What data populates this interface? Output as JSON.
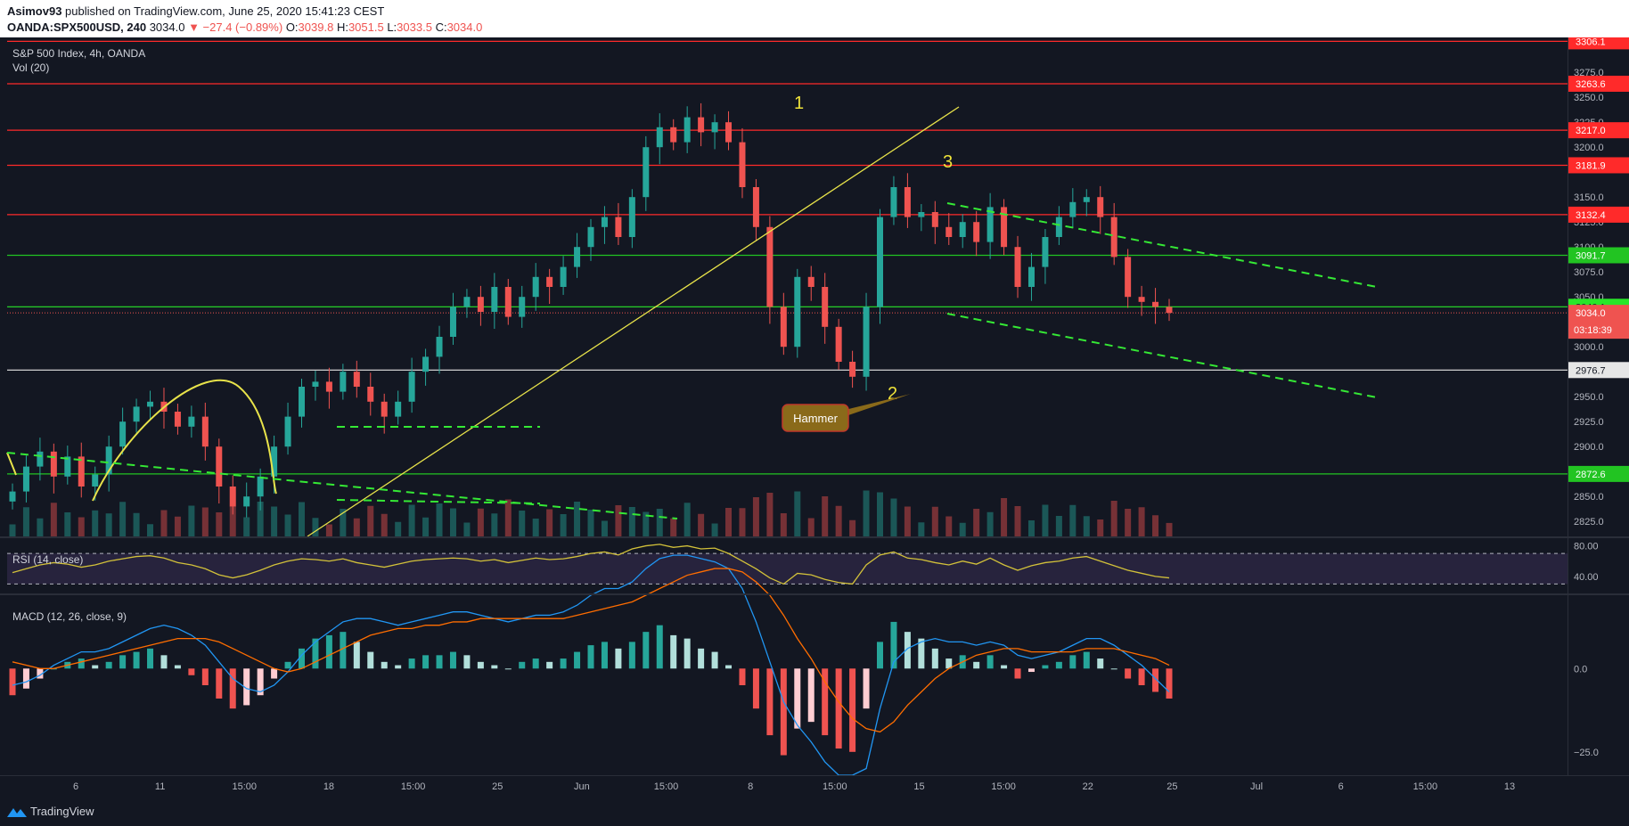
{
  "header": {
    "publisher": "Asimov93",
    "published_text": "published on TradingView.com, June 25, 2020 15:41:23 CEST",
    "symbol": "OANDA:SPX500USD, 240",
    "last": "3034.0",
    "change": "▼ −27.4 (−0.89%)",
    "open_label": "O:",
    "open": "3039.8",
    "high_label": "H:",
    "high": "3051.5",
    "low_label": "L:",
    "low": "3033.5",
    "close_label": "C:",
    "close": "3034.0"
  },
  "legend": {
    "title": "S&P 500 Index, 4h, OANDA",
    "vol": "Vol (20)",
    "rsi": "RSI (14, close)",
    "macd": "MACD (12, 26, close, 9)"
  },
  "footer": {
    "brand": "TradingView"
  },
  "colors": {
    "background": "#131722",
    "up": "#26a69a",
    "down": "#ef5350",
    "resistance": "#ff2020",
    "support": "#22c422",
    "trendline": "#e8e34a",
    "channel": "#35e935",
    "rsi": "#d2c13a",
    "macd_line": "#2196f3",
    "signal_line": "#ff6d00"
  },
  "chart_data": [
    {
      "type": "candlestick",
      "title": "S&P 500 Index, 4h, OANDA",
      "y_ticks": [
        "3275.0",
        "3250.0",
        "3225.0",
        "3200.0",
        "3150.0",
        "3125.0",
        "3100.0",
        "3075.0",
        "3050.0",
        "3000.0",
        "2950.0",
        "2925.0",
        "2900.0",
        "2850.0",
        "2825.0"
      ],
      "x_ticks": [
        "6",
        "11",
        "15:00",
        "18",
        "15:00",
        "25",
        "Jun",
        "15:00",
        "8",
        "15:00",
        "15",
        "15:00",
        "22",
        "25",
        "Jul",
        "6",
        "15:00",
        "13"
      ],
      "ylim": [
        2810,
        3310
      ],
      "price_levels": [
        {
          "value": 3306.1,
          "label": "3306.1",
          "kind": "resistance"
        },
        {
          "value": 3263.6,
          "label": "3263.6",
          "kind": "resistance"
        },
        {
          "value": 3217.0,
          "label": "3217.0",
          "kind": "resistance"
        },
        {
          "value": 3181.9,
          "label": "3181.9",
          "kind": "resistance"
        },
        {
          "value": 3132.4,
          "label": "3132.4",
          "kind": "resistance"
        },
        {
          "value": 3091.7,
          "label": "3091.7",
          "kind": "support"
        },
        {
          "value": 3040.1,
          "label": "3040.1",
          "kind": "support_bright"
        },
        {
          "value": 2976.7,
          "label": "2976.7",
          "kind": "neutral"
        },
        {
          "value": 2872.6,
          "label": "2872.6",
          "kind": "support"
        }
      ],
      "last_price": {
        "value": 3034.0,
        "label": "3034.0",
        "countdown": "03:18:39"
      },
      "annotations": [
        {
          "text": "1",
          "kind": "wave"
        },
        {
          "text": "2",
          "kind": "wave"
        },
        {
          "text": "3",
          "kind": "wave"
        },
        {
          "text": "Hammer",
          "kind": "callout"
        }
      ],
      "closes": [
        2855,
        2880,
        2895,
        2870,
        2890,
        2860,
        2872,
        2900,
        2925,
        2940,
        2945,
        2935,
        2920,
        2930,
        2900,
        2860,
        2840,
        2850,
        2870,
        2900,
        2930,
        2960,
        2965,
        2955,
        2975,
        2960,
        2945,
        2930,
        2945,
        2975,
        2990,
        3010,
        3040,
        3050,
        3035,
        3060,
        3030,
        3050,
        3070,
        3060,
        3080,
        3100,
        3120,
        3130,
        3110,
        3150,
        3200,
        3220,
        3205,
        3230,
        3215,
        3225,
        3205,
        3160,
        3120,
        3040,
        3000,
        3070,
        3060,
        3020,
        2985,
        2970,
        3040,
        3130,
        3160,
        3130,
        3135,
        3120,
        3110,
        3125,
        3105,
        3140,
        3100,
        3060,
        3080,
        3110,
        3130,
        3145,
        3150,
        3130,
        3090,
        3050,
        3045,
        3040,
        3034
      ]
    },
    {
      "type": "line",
      "title": "RSI (14, close)",
      "y_ticks": [
        "80.00",
        "40.00"
      ],
      "ylim": [
        20,
        90
      ],
      "bands": [
        70,
        30
      ],
      "values": [
        45,
        50,
        55,
        58,
        56,
        52,
        55,
        60,
        63,
        66,
        67,
        64,
        58,
        55,
        50,
        42,
        38,
        42,
        48,
        55,
        60,
        63,
        62,
        60,
        63,
        58,
        55,
        52,
        56,
        60,
        62,
        63,
        64,
        63,
        60,
        62,
        58,
        61,
        64,
        62,
        63,
        66,
        70,
        72,
        68,
        76,
        80,
        82,
        78,
        80,
        76,
        77,
        70,
        60,
        50,
        38,
        30,
        44,
        42,
        36,
        32,
        30,
        55,
        68,
        72,
        64,
        62,
        58,
        55,
        60,
        56,
        64,
        55,
        48,
        54,
        58,
        60,
        64,
        66,
        60,
        54,
        48,
        44,
        40,
        38
      ]
    },
    {
      "type": "bar",
      "title": "MACD (12, 26, close, 9)",
      "y_ticks": [
        "0.0",
        "−25.0"
      ],
      "ylim": [
        -32,
        22
      ],
      "histogram": [
        -8,
        -6,
        -3,
        0,
        2,
        3,
        1,
        2,
        4,
        5,
        6,
        4,
        1,
        -2,
        -5,
        -9,
        -12,
        -11,
        -8,
        -3,
        2,
        6,
        9,
        10,
        11,
        8,
        5,
        2,
        1,
        3,
        4,
        4,
        5,
        4,
        2,
        1,
        0,
        2,
        3,
        2,
        3,
        5,
        7,
        8,
        6,
        8,
        11,
        13,
        10,
        9,
        6,
        5,
        1,
        -5,
        -12,
        -20,
        -26,
        -18,
        -16,
        -20,
        -24,
        -25,
        -12,
        8,
        14,
        11,
        9,
        6,
        3,
        4,
        2,
        4,
        1,
        -3,
        -1,
        1,
        2,
        4,
        5,
        3,
        0,
        -3,
        -5,
        -7,
        -9
      ],
      "macd": [
        -5,
        -4,
        -2,
        1,
        3,
        5,
        5,
        6,
        8,
        10,
        12,
        13,
        12,
        10,
        7,
        2,
        -3,
        -6,
        -7,
        -5,
        -1,
        4,
        8,
        11,
        14,
        15,
        15,
        14,
        13,
        14,
        15,
        16,
        17,
        17,
        16,
        15,
        14,
        15,
        16,
        16,
        17,
        19,
        22,
        24,
        24,
        26,
        30,
        33,
        34,
        34,
        33,
        32,
        30,
        24,
        14,
        2,
        -10,
        -17,
        -22,
        -28,
        -34,
        -38,
        -30,
        -12,
        2,
        6,
        8,
        9,
        8,
        8,
        7,
        8,
        7,
        4,
        3,
        4,
        5,
        7,
        9,
        9,
        7,
        4,
        1,
        -3,
        -7
      ],
      "signal": [
        2,
        1,
        0,
        0,
        1,
        2,
        3,
        4,
        5,
        6,
        7,
        8,
        9,
        9,
        9,
        8,
        6,
        4,
        2,
        0,
        -1,
        0,
        2,
        4,
        6,
        8,
        10,
        11,
        12,
        12,
        13,
        13,
        14,
        14,
        15,
        15,
        15,
        15,
        15,
        15,
        15,
        16,
        17,
        18,
        19,
        20,
        22,
        24,
        26,
        28,
        29,
        30,
        30,
        29,
        26,
        22,
        16,
        9,
        3,
        -4,
        -10,
        -15,
        -18,
        -19,
        -16,
        -11,
        -7,
        -3,
        0,
        2,
        4,
        5,
        6,
        6,
        5,
        5,
        5,
        5,
        6,
        6,
        6,
        5,
        4,
        3,
        1
      ]
    }
  ]
}
